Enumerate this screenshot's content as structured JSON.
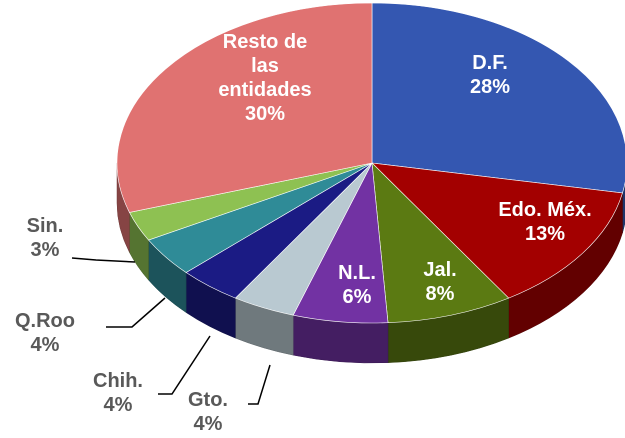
{
  "chart_data": {
    "type": "pie",
    "categories": [
      "D.F.",
      "Edo. Méx.",
      "Jal.",
      "N.L.",
      "Gto.",
      "Chih.",
      "Q.Roo",
      "Sin.",
      "Resto de las entidades"
    ],
    "values": [
      28,
      13,
      8,
      6,
      4,
      4,
      4,
      3,
      30
    ],
    "value_labels": [
      "28%",
      "13%",
      "8%",
      "6%",
      "4%",
      "4%",
      "4%",
      "3%",
      "30%"
    ],
    "colors": [
      "#3457b1",
      "#a30000",
      "#5b7a12",
      "#7232a3",
      "#b9c9d1",
      "#1b1b84",
      "#2f8b97",
      "#8ec152",
      "#e07271"
    ]
  }
}
